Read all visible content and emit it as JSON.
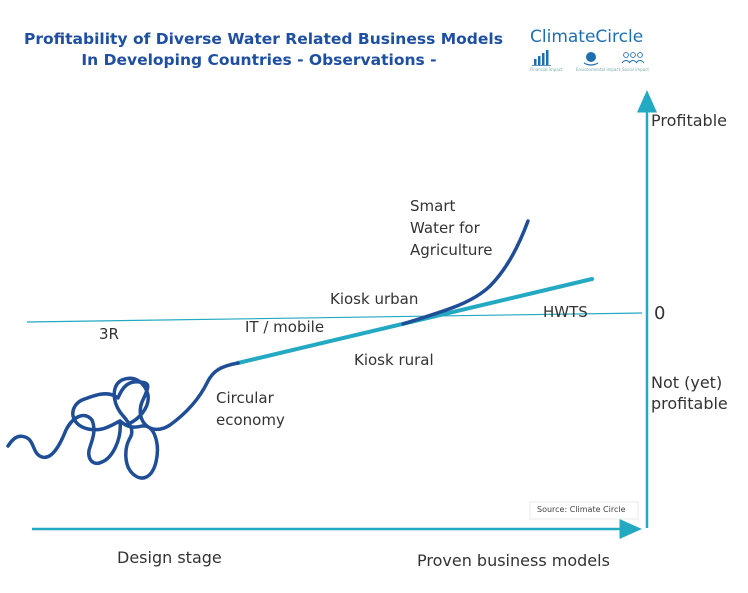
{
  "title": {
    "line1": "Profitability of Diverse Water Related Business Models",
    "line2": "In Developing Countries - Observations -"
  },
  "logo": {
    "name": "ClimateCircle",
    "icons": [
      "bar-chart-icon",
      "globe-hand-icon",
      "people-icon"
    ],
    "captions": [
      "Financial impact",
      "Environmental impact",
      "Social impact"
    ]
  },
  "axis": {
    "y_top": "Profitable",
    "y_zero": "0",
    "y_bottom_line1": "Not (yet)",
    "y_bottom_line2": "profitable",
    "x_left": "Design stage",
    "x_right": "Proven business models"
  },
  "labels": {
    "r3": "3R",
    "it_mobile": "IT / mobile",
    "kiosk_urban": "Kiosk urban",
    "kiosk_rural": "Kiosk rural",
    "hwts": "HWTS",
    "circular_line1": "Circular",
    "circular_line2": "economy",
    "smart_line1": "Smart",
    "smart_line2": "Water for",
    "smart_line3": "Agriculture"
  },
  "source": "Source: Climate Circle",
  "colors": {
    "axis": "#23a9c2",
    "curve_dark": "#1f4e96",
    "title": "#1f4fa0"
  }
}
